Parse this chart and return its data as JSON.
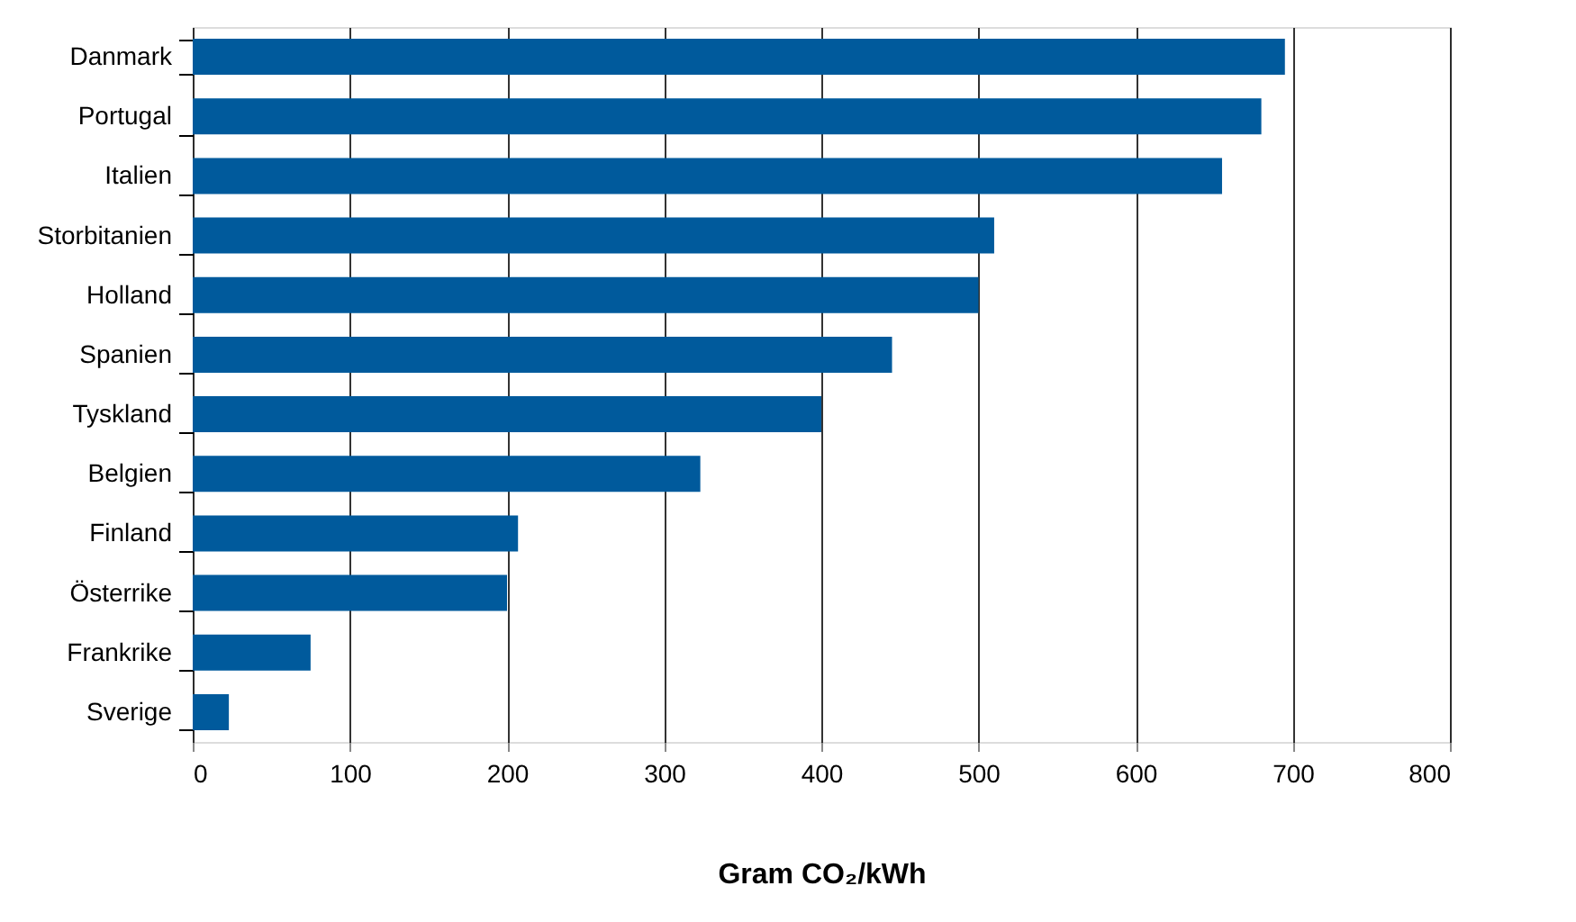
{
  "chart_data": {
    "type": "bar",
    "orientation": "horizontal",
    "xlabel": "Gram CO₂/kWh",
    "categories": [
      "Danmark",
      "Portugal",
      "Italien",
      "Storbitanien",
      "Holland",
      "Spanien",
      "Tyskland",
      "Belgien",
      "Finland",
      "Österrike",
      "Frankrike",
      "Sverige"
    ],
    "values": [
      695,
      680,
      655,
      510,
      500,
      445,
      400,
      323,
      207,
      200,
      75,
      23
    ],
    "color": "#005a9c",
    "xlim": [
      0,
      800
    ],
    "xticks": [
      0,
      100,
      200,
      300,
      400,
      500,
      600,
      700,
      800
    ],
    "grid": "x"
  }
}
